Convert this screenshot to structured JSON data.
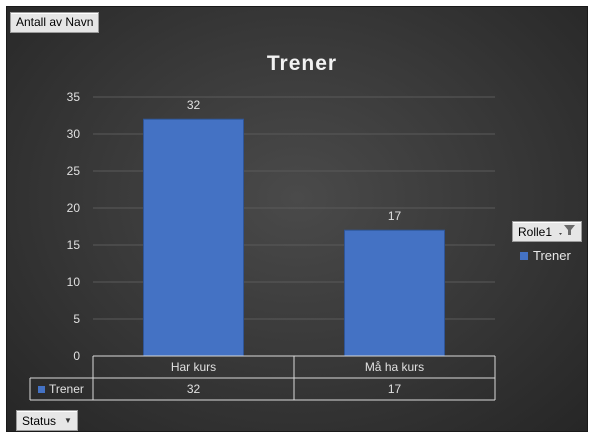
{
  "value_field": "Antall av Navn",
  "status_field": "Status",
  "legend_field": "Rolle1",
  "colors": {
    "bar": "#4472c4",
    "bar_edge": "#2f5597",
    "text": "#e0e0e0",
    "gridline": "#5a5a5a",
    "table_line": "#d9d9d9"
  },
  "icons": {
    "status_dropdown": "chevron-down-icon",
    "legend_filter": "filter-icon"
  },
  "chart_data": {
    "type": "bar",
    "title": "Trener",
    "categories": [
      "Har kurs",
      "Må ha kurs"
    ],
    "series": [
      {
        "name": "Trener",
        "values": [
          32,
          17
        ]
      }
    ],
    "ylim": [
      0,
      35
    ],
    "yticks": [
      0,
      5,
      10,
      15,
      20,
      25,
      30,
      35
    ],
    "grid": true,
    "legend": "right",
    "data_labels": true,
    "data_table": true
  }
}
